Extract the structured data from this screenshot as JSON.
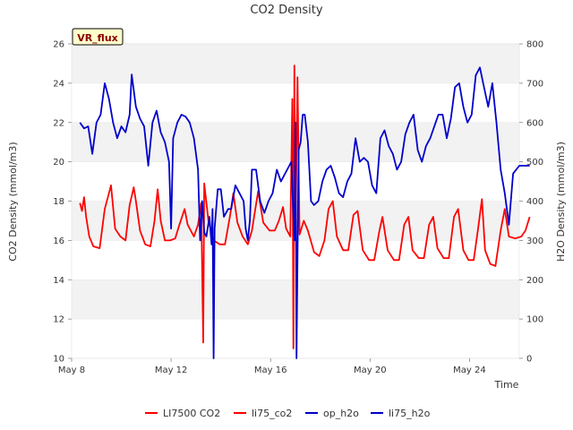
{
  "chart_data": {
    "type": "line",
    "title": "CO2 Density",
    "xlabel": "Time",
    "ylabel_left": "CO2 Density (mmol/m3)",
    "ylabel_right": "H2O Density (mmol/m3)",
    "badge": "VR_flux",
    "ylim_left": [
      10,
      26
    ],
    "ylim_right": [
      0,
      800
    ],
    "xlim_days": [
      "May 8",
      "May 26"
    ],
    "x_ticks": [
      "May 8",
      "May 12",
      "May 16",
      "May 20",
      "May 24"
    ],
    "y_ticks_left": [
      "10",
      "12",
      "14",
      "16",
      "18",
      "20",
      "22",
      "24",
      "26"
    ],
    "y_ticks_right": [
      "0",
      "100",
      "200",
      "300",
      "400",
      "500",
      "600",
      "700",
      "800"
    ],
    "grid": "horizontal bands",
    "legend_position": "bottom",
    "legend": [
      "LI7500 CO2",
      "li75_co2",
      "op_h2o",
      "li75_h2o"
    ],
    "colors": {
      "co2": "#ff0000",
      "h2o": "#0000cc",
      "band": "#f2f2f2",
      "badge_bg": "#ffffcc",
      "badge_text": "#8b0000"
    },
    "series": [
      {
        "name": "li75_co2",
        "axis": "left",
        "color": "#ff0000",
        "points": [
          [
            "May 8 08:00",
            17.9
          ],
          [
            "May 8 10:00",
            17.5
          ],
          [
            "May 8 12:00",
            18.2
          ],
          [
            "May 8 14:00",
            17.2
          ],
          [
            "May 8 17:00",
            16.2
          ],
          [
            "May 8 21:00",
            15.7
          ],
          [
            "May 9 03:00",
            15.6
          ],
          [
            "May 9 08:00",
            17.6
          ],
          [
            "May 9 12:00",
            18.4
          ],
          [
            "May 9 14:00",
            18.8
          ],
          [
            "May 9 18:00",
            16.6
          ],
          [
            "May 9 23:00",
            16.2
          ],
          [
            "May 10 04:00",
            16.0
          ],
          [
            "May 10 08:00",
            17.8
          ],
          [
            "May 10 12:00",
            18.7
          ],
          [
            "May 10 14:00",
            18.0
          ],
          [
            "May 10 18:00",
            16.5
          ],
          [
            "May 10 23:00",
            15.8
          ],
          [
            "May 11 04:00",
            15.7
          ],
          [
            "May 11 08:00",
            17.0
          ],
          [
            "May 11 11:00",
            18.6
          ],
          [
            "May 11 14:00",
            17.0
          ],
          [
            "May 11 18:00",
            16.0
          ],
          [
            "May 11 23:00",
            16.0
          ],
          [
            "May 12 04:00",
            16.1
          ],
          [
            "May 12 08:00",
            16.8
          ],
          [
            "May 12 13:00",
            17.6
          ],
          [
            "May 12 16:00",
            16.8
          ],
          [
            "May 12 22:00",
            16.2
          ],
          [
            "May 13 02:00",
            16.8
          ],
          [
            "May 13 05:00",
            17.9
          ],
          [
            "May 13 07:00",
            10.8
          ],
          [
            "May 13 08:00",
            18.9
          ],
          [
            "May 13 12:00",
            17.0
          ],
          [
            "May 13 17:00",
            16.0
          ],
          [
            "May 13 23:00",
            15.8
          ],
          [
            "May 14 04:00",
            15.8
          ],
          [
            "May 14 09:00",
            17.3
          ],
          [
            "May 14 12:00",
            18.4
          ],
          [
            "May 14 16:00",
            16.9
          ],
          [
            "May 14 21:00",
            16.2
          ],
          [
            "May 15 02:00",
            15.8
          ],
          [
            "May 15 06:00",
            16.5
          ],
          [
            "May 15 12:00",
            18.5
          ],
          [
            "May 15 17:00",
            16.9
          ],
          [
            "May 15 23:00",
            16.5
          ],
          [
            "May 16 04:00",
            16.5
          ],
          [
            "May 16 08:00",
            17.0
          ],
          [
            "May 16 12:00",
            17.7
          ],
          [
            "May 16 15:00",
            16.6
          ],
          [
            "May 16 19:00",
            16.2
          ],
          [
            "May 16 21:00",
            23.2
          ],
          [
            "May 16 22:00",
            10.5
          ],
          [
            "May 16 23:00",
            24.9
          ],
          [
            "May 17 00:00",
            16.2
          ],
          [
            "May 17 02:00",
            24.3
          ],
          [
            "May 17 04:00",
            16.3
          ],
          [
            "May 17 08:00",
            17.0
          ],
          [
            "May 17 12:00",
            16.5
          ],
          [
            "May 17 18:00",
            15.4
          ],
          [
            "May 17 23:00",
            15.2
          ],
          [
            "May 18 04:00",
            16.0
          ],
          [
            "May 18 08:00",
            17.6
          ],
          [
            "May 18 12:00",
            18.0
          ],
          [
            "May 18 16:00",
            16.2
          ],
          [
            "May 18 22:00",
            15.5
          ],
          [
            "May 19 03:00",
            15.5
          ],
          [
            "May 19 08:00",
            17.3
          ],
          [
            "May 19 12:00",
            17.5
          ],
          [
            "May 19 17:00",
            15.5
          ],
          [
            "May 19 23:00",
            15.0
          ],
          [
            "May 20 04:00",
            15.0
          ],
          [
            "May 20 09:00",
            16.5
          ],
          [
            "May 20 12:00",
            17.2
          ],
          [
            "May 20 17:00",
            15.5
          ],
          [
            "May 20 23:00",
            15.0
          ],
          [
            "May 21 04:00",
            15.0
          ],
          [
            "May 21 09:00",
            16.8
          ],
          [
            "May 21 13:00",
            17.2
          ],
          [
            "May 21 17:00",
            15.5
          ],
          [
            "May 21 23:00",
            15.1
          ],
          [
            "May 22 04:00",
            15.1
          ],
          [
            "May 22 09:00",
            16.8
          ],
          [
            "May 22 13:00",
            17.2
          ],
          [
            "May 22 17:00",
            15.6
          ],
          [
            "May 22 23:00",
            15.1
          ],
          [
            "May 23 04:00",
            15.1
          ],
          [
            "May 23 09:00",
            17.2
          ],
          [
            "May 23 13:00",
            17.6
          ],
          [
            "May 23 18:00",
            15.5
          ],
          [
            "May 23 23:00",
            15.0
          ],
          [
            "May 24 04:00",
            15.0
          ],
          [
            "May 24 08:00",
            16.5
          ],
          [
            "May 24 12:00",
            18.1
          ],
          [
            "May 24 15:00",
            15.5
          ],
          [
            "May 24 20:00",
            14.8
          ],
          [
            "May 25 01:00",
            14.7
          ],
          [
            "May 25 06:00",
            16.5
          ],
          [
            "May 25 10:00",
            17.6
          ],
          [
            "May 25 14:00",
            16.2
          ],
          [
            "May 25 20:00",
            16.1
          ],
          [
            "May 26 02:00",
            16.2
          ],
          [
            "May 26 06:00",
            16.5
          ],
          [
            "May 26 10:00",
            17.2
          ]
        ]
      },
      {
        "name": "li75_h2o",
        "axis": "right",
        "color": "#0000cc",
        "points": [
          [
            "May 8 08:00",
            600
          ],
          [
            "May 8 12:00",
            585
          ],
          [
            "May 8 16:00",
            590
          ],
          [
            "May 8 20:00",
            520
          ],
          [
            "May 9 00:00",
            600
          ],
          [
            "May 9 04:00",
            620
          ],
          [
            "May 9 08:00",
            700
          ],
          [
            "May 9 12:00",
            660
          ],
          [
            "May 9 16:00",
            600
          ],
          [
            "May 9 20:00",
            560
          ],
          [
            "May 10 00:00",
            590
          ],
          [
            "May 10 04:00",
            575
          ],
          [
            "May 10 08:00",
            620
          ],
          [
            "May 10 10:00",
            722
          ],
          [
            "May 10 14:00",
            640
          ],
          [
            "May 10 18:00",
            610
          ],
          [
            "May 10 22:00",
            590
          ],
          [
            "May 11 02:00",
            490
          ],
          [
            "May 11 06:00",
            600
          ],
          [
            "May 11 10:00",
            630
          ],
          [
            "May 11 14:00",
            575
          ],
          [
            "May 11 18:00",
            550
          ],
          [
            "May 11 22:00",
            500
          ],
          [
            "May 12 00:00",
            330
          ],
          [
            "May 12 02:00",
            560
          ],
          [
            "May 12 06:00",
            600
          ],
          [
            "May 12 10:00",
            620
          ],
          [
            "May 12 14:00",
            615
          ],
          [
            "May 12 18:00",
            600
          ],
          [
            "May 12 22:00",
            560
          ],
          [
            "May 13 02:00",
            480
          ],
          [
            "May 13 04:00",
            300
          ],
          [
            "May 13 06:00",
            400
          ],
          [
            "May 13 08:00",
            320
          ],
          [
            "May 13 10:00",
            310
          ],
          [
            "May 13 13:00",
            360
          ],
          [
            "May 13 15:00",
            290
          ],
          [
            "May 13 16:00",
            380
          ],
          [
            "May 13 17:00",
            0
          ],
          [
            "May 13 18:00",
            330
          ],
          [
            "May 13 21:00",
            430
          ],
          [
            "May 14 00:00",
            430
          ],
          [
            "May 14 03:00",
            360
          ],
          [
            "May 14 07:00",
            380
          ],
          [
            "May 14 10:00",
            380
          ],
          [
            "May 14 14:00",
            440
          ],
          [
            "May 14 18:00",
            420
          ],
          [
            "May 14 22:00",
            400
          ],
          [
            "May 15 00:00",
            330
          ],
          [
            "May 15 02:00",
            300
          ],
          [
            "May 15 04:00",
            350
          ],
          [
            "May 15 06:00",
            480
          ],
          [
            "May 15 10:00",
            480
          ],
          [
            "May 15 14:00",
            400
          ],
          [
            "May 15 18:00",
            370
          ],
          [
            "May 15 22:00",
            400
          ],
          [
            "May 16 02:00",
            420
          ],
          [
            "May 16 06:00",
            480
          ],
          [
            "May 16 10:00",
            450
          ],
          [
            "May 16 14:00",
            470
          ],
          [
            "May 16 18:00",
            490
          ],
          [
            "May 16 20:00",
            500
          ],
          [
            "May 16 23:00",
            300
          ],
          [
            "May 17 00:00",
            600
          ],
          [
            "May 17 01:00",
            0
          ],
          [
            "May 17 03:00",
            530
          ],
          [
            "May 17 05:00",
            550
          ],
          [
            "May 17 07:00",
            620
          ],
          [
            "May 17 09:00",
            620
          ],
          [
            "May 17 12:00",
            550
          ],
          [
            "May 17 15:00",
            400
          ],
          [
            "May 17 18:00",
            390
          ],
          [
            "May 17 22:00",
            400
          ],
          [
            "May 18 02:00",
            450
          ],
          [
            "May 18 06:00",
            480
          ],
          [
            "May 18 10:00",
            490
          ],
          [
            "May 18 14:00",
            460
          ],
          [
            "May 18 18:00",
            420
          ],
          [
            "May 18 22:00",
            410
          ],
          [
            "May 19 02:00",
            450
          ],
          [
            "May 19 06:00",
            470
          ],
          [
            "May 19 10:00",
            560
          ],
          [
            "May 19 14:00",
            500
          ],
          [
            "May 19 18:00",
            510
          ],
          [
            "May 19 22:00",
            500
          ],
          [
            "May 20 02:00",
            440
          ],
          [
            "May 20 06:00",
            420
          ],
          [
            "May 20 10:00",
            560
          ],
          [
            "May 20 14:00",
            580
          ],
          [
            "May 20 18:00",
            540
          ],
          [
            "May 20 22:00",
            520
          ],
          [
            "May 21 02:00",
            480
          ],
          [
            "May 21 06:00",
            500
          ],
          [
            "May 21 10:00",
            570
          ],
          [
            "May 21 14:00",
            600
          ],
          [
            "May 21 18:00",
            620
          ],
          [
            "May 21 22:00",
            530
          ],
          [
            "May 22 02:00",
            500
          ],
          [
            "May 22 06:00",
            540
          ],
          [
            "May 22 10:00",
            560
          ],
          [
            "May 22 14:00",
            590
          ],
          [
            "May 22 18:00",
            620
          ],
          [
            "May 22 22:00",
            620
          ],
          [
            "May 23 02:00",
            560
          ],
          [
            "May 23 06:00",
            610
          ],
          [
            "May 23 10:00",
            690
          ],
          [
            "May 23 14:00",
            700
          ],
          [
            "May 23 18:00",
            640
          ],
          [
            "May 23 22:00",
            600
          ],
          [
            "May 24 02:00",
            620
          ],
          [
            "May 24 06:00",
            720
          ],
          [
            "May 24 10:00",
            740
          ],
          [
            "May 24 14:00",
            690
          ],
          [
            "May 24 18:00",
            640
          ],
          [
            "May 24 22:00",
            700
          ],
          [
            "May 25 02:00",
            600
          ],
          [
            "May 25 06:00",
            480
          ],
          [
            "May 25 10:00",
            420
          ],
          [
            "May 25 14:00",
            340
          ],
          [
            "May 25 18:00",
            470
          ],
          [
            "May 26 00:00",
            490
          ],
          [
            "May 26 06:00",
            490
          ],
          [
            "May 26 10:00",
            490
          ]
        ]
      }
    ]
  }
}
